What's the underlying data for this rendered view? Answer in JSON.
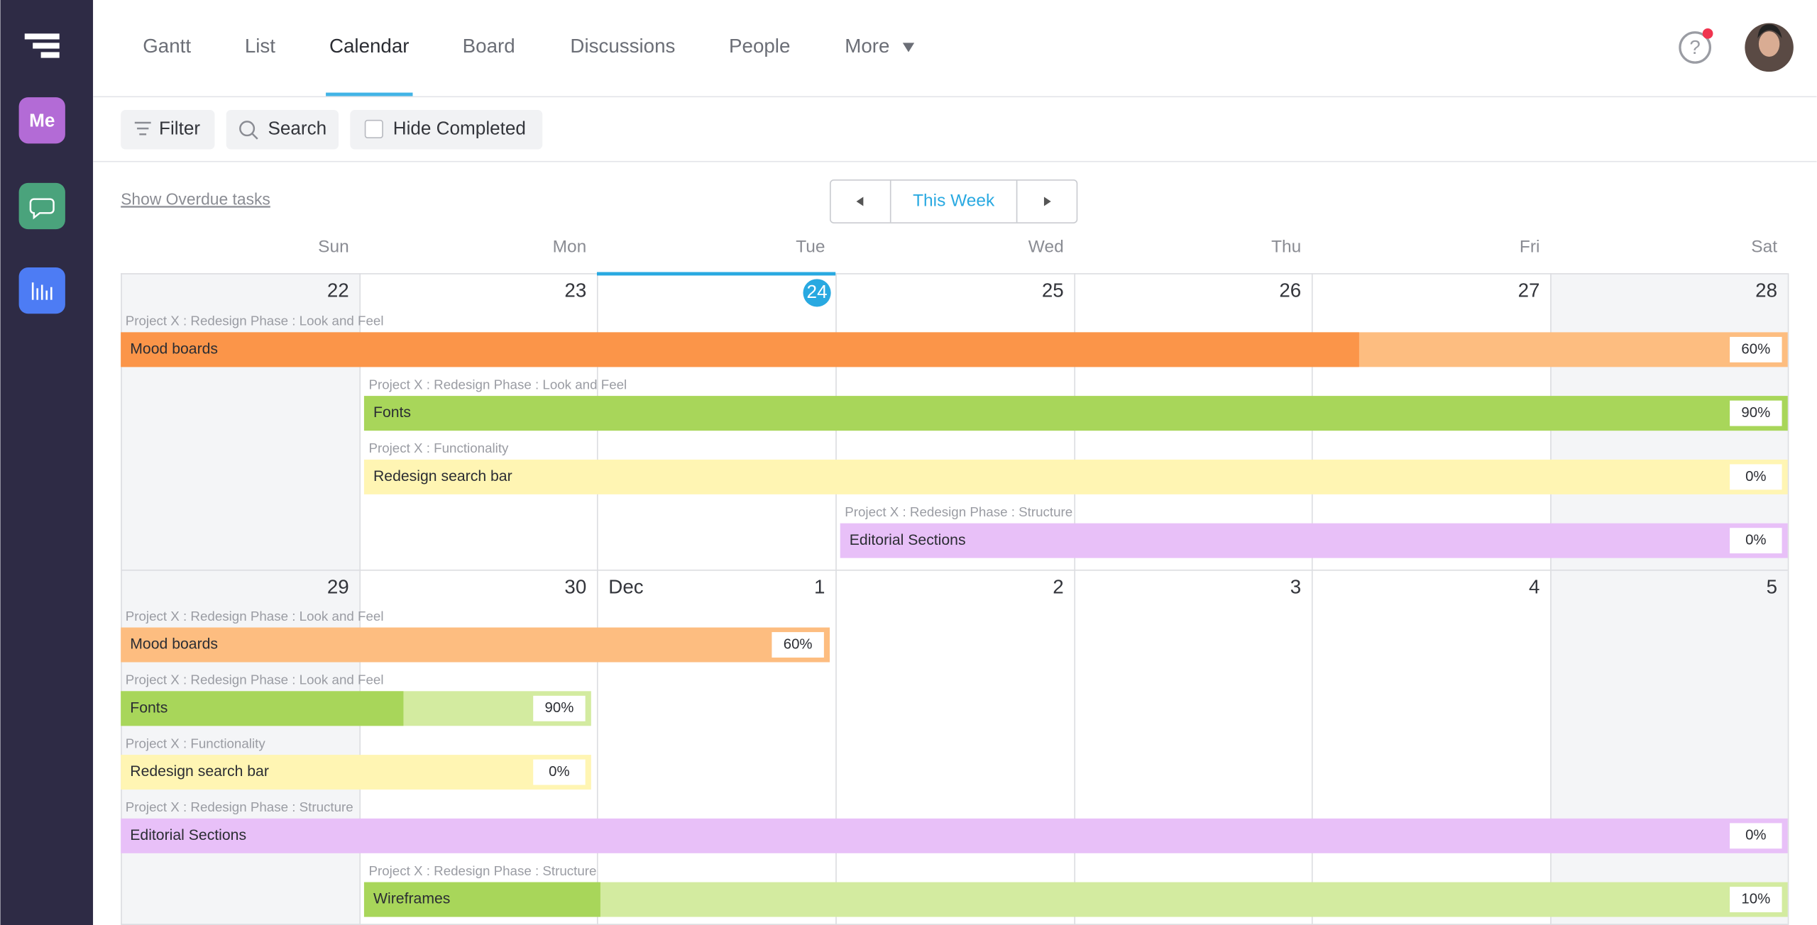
{
  "nav": {
    "items": [
      "Gantt",
      "List",
      "Calendar",
      "Board",
      "Discussions",
      "People",
      "More"
    ],
    "active": "Calendar"
  },
  "sidebar": {
    "me": "Me"
  },
  "toolbar": {
    "filter": "Filter",
    "search": "Search",
    "hide_completed": "Hide Completed"
  },
  "overdue_link": "Show Overdue tasks",
  "week_nav": {
    "label": "This Week"
  },
  "calendar": {
    "weekdays": [
      "Sun",
      "Mon",
      "Tue",
      "Wed",
      "Thu",
      "Fri",
      "Sat"
    ],
    "weeks": [
      {
        "days": [
          "22",
          "23",
          "24",
          "25",
          "26",
          "27",
          "28"
        ],
        "tasks": [
          {
            "project": "Project X : Redesign Phase : Look and Feel",
            "name": "Mood boards",
            "progress": "60%"
          },
          {
            "project": "Project X : Redesign Phase : Look and Feel",
            "name": "Fonts",
            "progress": "90%"
          },
          {
            "project": "Project X : Functionality",
            "name": "Redesign search bar",
            "progress": "0%"
          },
          {
            "project": "Project X : Redesign Phase : Structure",
            "name": "Editorial Sections",
            "progress": "0%"
          }
        ]
      },
      {
        "days": [
          "29",
          "30",
          "1",
          "2",
          "3",
          "4",
          "5"
        ],
        "month": "Dec",
        "tasks": [
          {
            "project": "Project X : Redesign Phase : Look and Feel",
            "name": "Mood boards",
            "progress": "60%"
          },
          {
            "project": "Project X : Redesign Phase : Look and Feel",
            "name": "Fonts",
            "progress": "90%"
          },
          {
            "project": "Project X : Functionality",
            "name": "Redesign search bar",
            "progress": "0%"
          },
          {
            "project": "Project X : Redesign Phase : Structure",
            "name": "Editorial Sections",
            "progress": "0%"
          },
          {
            "project": "Project X : Redesign Phase : Structure",
            "name": "Wireframes",
            "progress": "10%"
          }
        ]
      }
    ]
  }
}
